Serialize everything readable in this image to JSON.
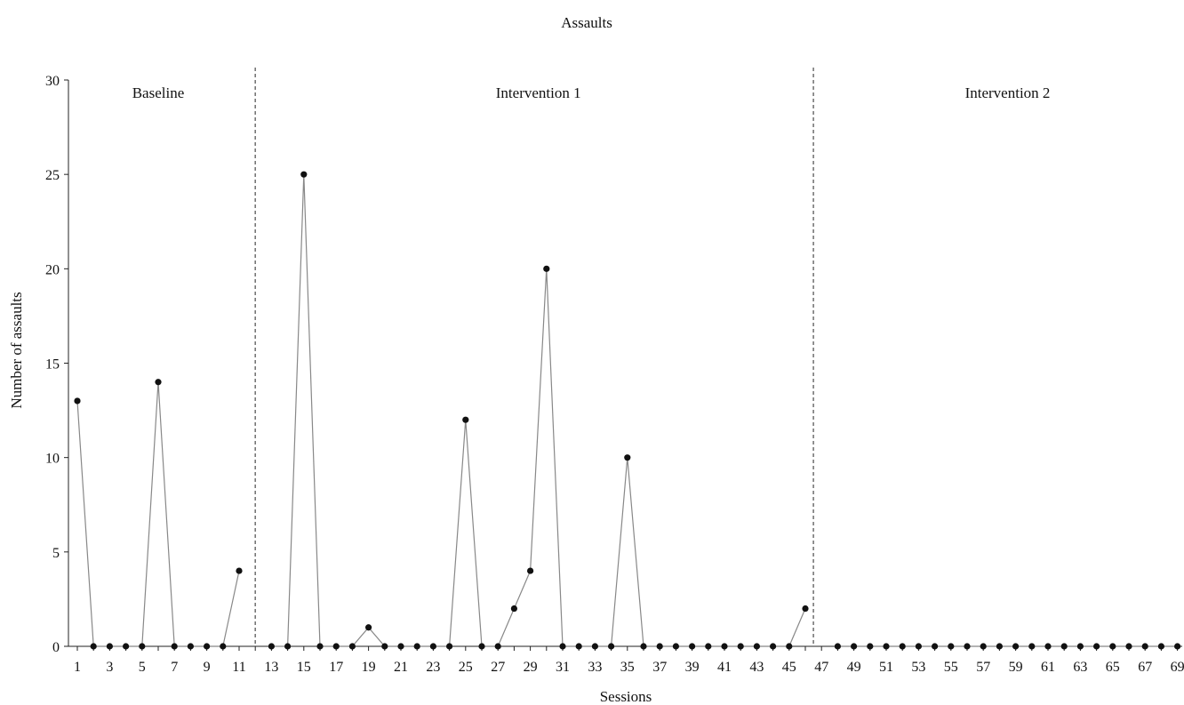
{
  "chart_data": {
    "type": "line",
    "title": "Assaults",
    "xlabel": "Sessions",
    "ylabel": "Number of assaults",
    "ylim": [
      0,
      30
    ],
    "yticks": [
      0,
      5,
      10,
      15,
      20,
      25,
      30
    ],
    "xlim": [
      1,
      69
    ],
    "xtick_labels": [
      "1",
      "3",
      "5",
      "7",
      "9",
      "11",
      "13",
      "15",
      "17",
      "19",
      "21",
      "23",
      "25",
      "27",
      "29",
      "31",
      "33",
      "35",
      "37",
      "39",
      "41",
      "43",
      "45",
      "47",
      "49",
      "51",
      "53",
      "55",
      "57",
      "59",
      "61",
      "63",
      "65",
      "67",
      "69"
    ],
    "grid": false,
    "legend": "none",
    "line_color": "#888888",
    "marker_color": "#111111",
    "phase_line_color": "#777777",
    "phases": [
      {
        "label": "Baseline",
        "start": 1,
        "end": 11
      },
      {
        "label": "Intervention 1",
        "start": 13,
        "end": 46
      },
      {
        "label": "Intervention 2",
        "start": 48,
        "end": 69
      }
    ],
    "phase_boundaries": [
      12,
      46.5
    ],
    "series": [
      {
        "x": [
          1,
          2,
          3,
          4,
          5,
          6,
          7,
          8,
          9,
          10,
          11
        ],
        "values": [
          13,
          0,
          0,
          0,
          0,
          14,
          0,
          0,
          0,
          0,
          4
        ]
      },
      {
        "x": [
          13,
          14,
          15,
          16,
          17,
          18,
          19,
          20,
          21,
          22,
          23,
          24,
          25,
          26,
          27,
          28,
          29,
          30,
          31,
          32,
          33,
          34,
          35,
          36,
          37,
          38,
          39,
          40,
          41,
          42,
          43,
          44,
          45,
          46
        ],
        "values": [
          0,
          0,
          25,
          0,
          0,
          0,
          1,
          0,
          0,
          0,
          0,
          0,
          12,
          0,
          0,
          2,
          4,
          20,
          0,
          0,
          0,
          0,
          10,
          0,
          0,
          0,
          0,
          0,
          0,
          0,
          0,
          0,
          0,
          2
        ]
      },
      {
        "x": [
          48,
          49,
          50,
          51,
          52,
          53,
          54,
          55,
          56,
          57,
          58,
          59,
          60,
          61,
          62,
          63,
          64,
          65,
          66,
          67,
          68,
          69
        ],
        "values": [
          0,
          0,
          0,
          0,
          0,
          0,
          0,
          0,
          0,
          0,
          0,
          0,
          0,
          0,
          0,
          0,
          0,
          0,
          0,
          0,
          0,
          0
        ]
      }
    ]
  }
}
